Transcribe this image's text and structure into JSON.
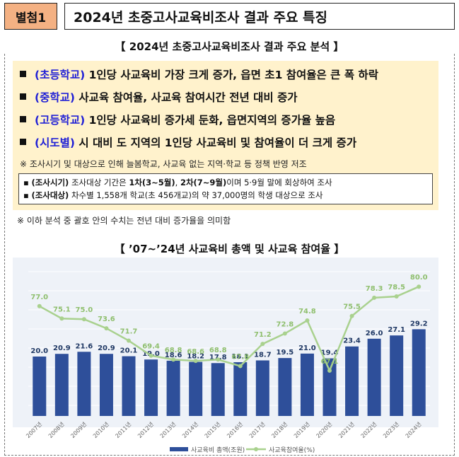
{
  "header": {
    "badge": "별첨1",
    "title": "2024년 초중고사교육비조사 결과 주요 특징"
  },
  "analysis": {
    "title": "【 2024년 초중고사교육비조사 결과 주요 분석 】",
    "bullets": [
      {
        "tag": "(초등학교)",
        "text": " 1인당 사교육비 가장 크게 증가, 읍면 초1 참여율은 큰 폭 하락"
      },
      {
        "tag": "(중학교)",
        "text": " 사교육 참여율, 사교육 참여시간 전년 대비 증가"
      },
      {
        "tag": "(고등학교)",
        "text": " 1인당 사교육비 증가세 둔화, 읍면지역의 증가율 높음"
      },
      {
        "tag": "(시도별)",
        "text": " 시 대비 도 지역의 1인당 사교육비 및 참여율이 더 크게 증가"
      }
    ],
    "note": "※ 조사시기 및 대상으로 인해 늘봄학교, 사교육 없는 지역·학교 등 정책 반영 저조",
    "survey": {
      "r1_tag": "(조사시기)",
      "r1_a": " 조사대상 기간은 ",
      "r1_b": "1차(3~5월)",
      "r1_c": ", ",
      "r1_d": "2차(7~9월)",
      "r1_e": "이며 5·9월 말에 회상하여 조사",
      "r2_tag": "(조사대상)",
      "r2_a": " 차수별 1,558개 학교(초 456개교)의 약 37,000명의 학생 대상으로 조사"
    }
  },
  "note2": "※ 이하 분석 중 괄호 안의 수치는 전년 대비 증가율을 의미함",
  "chart_title": "【 ’07~’24년 사교육비 총액 및 사교육 참여율 】",
  "chart_data": {
    "type": "bar",
    "categories": [
      "2007년",
      "2008년",
      "2009년",
      "2010년",
      "2011년",
      "2012년",
      "2013년",
      "2014년",
      "2015년",
      "2016년",
      "2017년",
      "2018년",
      "2019년",
      "2020년",
      "2021년",
      "2022년",
      "2023년",
      "2024년"
    ],
    "series": [
      {
        "name": "사교육비 총액(조원)",
        "type": "bar",
        "color": "#2e4f9a",
        "values": [
          20.0,
          20.9,
          21.6,
          20.9,
          20.1,
          19.0,
          18.6,
          18.2,
          17.8,
          18.1,
          18.7,
          19.5,
          21.0,
          19.4,
          23.4,
          26.0,
          27.1,
          29.2
        ]
      },
      {
        "name": "사교육참여율(%)",
        "type": "line",
        "color": "#a9d18e",
        "values": [
          77.0,
          75.1,
          75.0,
          73.6,
          71.7,
          69.4,
          68.8,
          68.6,
          68.8,
          67.8,
          71.2,
          72.8,
          74.8,
          67.1,
          75.5,
          78.3,
          78.5,
          80.0
        ]
      }
    ],
    "bar_label_color": "#1f3864",
    "line_label_color": "#8fbf6e",
    "legend_position": "bottom",
    "grid": true
  }
}
